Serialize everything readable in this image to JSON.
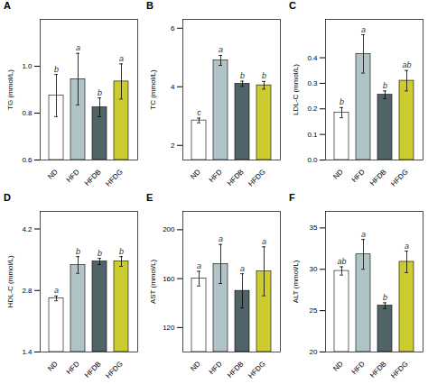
{
  "chart_data": [
    {
      "type": "bar",
      "title": "A",
      "ylabel": "TG (mmol/L)",
      "categories": [
        "ND",
        "HFD",
        "HFDB",
        "HFDG"
      ],
      "values": [
        0.875,
        0.945,
        0.825,
        0.935
      ],
      "errors": [
        0.09,
        0.11,
        0.04,
        0.075
      ],
      "annotations": [
        "b",
        "a",
        "b",
        "a"
      ],
      "colors": [
        "white",
        "#b0c4c8",
        "#506468",
        "#cccc30"
      ],
      "ylim": [
        0.6,
        1.2
      ],
      "yticks": [
        0.6,
        0.8,
        {
          "value": 1,
          "label": "1.0"
        }
      ],
      "grid": false
    },
    {
      "type": "bar",
      "title": "B",
      "ylabel": "TC (mmol/L)",
      "categories": [
        "ND",
        "HFD",
        "HFDB",
        "HFDG"
      ],
      "values": [
        2.85,
        4.9,
        4.1,
        4.05
      ],
      "errors": [
        0.08,
        0.17,
        0.09,
        0.13
      ],
      "annotations": [
        "c",
        "a",
        "b",
        "b"
      ],
      "colors": [
        "white",
        "#b0c4c8",
        "#506468",
        "#cccc30"
      ],
      "ylim": [
        1.5,
        6.3
      ],
      "yticks": [
        2,
        4,
        6
      ],
      "grid": false
    },
    {
      "type": "bar",
      "title": "C",
      "ylabel": "LDL-C (mmol/L)",
      "categories": [
        "ND",
        "HFD",
        "HFDB",
        "HFDG"
      ],
      "values": [
        0.185,
        0.415,
        0.255,
        0.31
      ],
      "errors": [
        0.02,
        0.075,
        0.015,
        0.04
      ],
      "annotations": [
        "b",
        "a",
        "b",
        "ab"
      ],
      "colors": [
        "white",
        "#b0c4c8",
        "#506468",
        "#cccc30"
      ],
      "ylim": [
        0.0,
        0.55
      ],
      "yticks": [
        {
          "value": 0,
          "label": "0.0"
        },
        0.1,
        0.2,
        0.3,
        0.4
      ],
      "grid": false
    },
    {
      "type": "bar",
      "title": "D",
      "ylabel": "HDL-C (mmol/L)",
      "categories": [
        "ND",
        "HFD",
        "HFDB",
        "HFDG"
      ],
      "values": [
        2.62,
        3.38,
        3.46,
        3.46
      ],
      "errors": [
        0.055,
        0.19,
        0.07,
        0.11
      ],
      "annotations": [
        "a",
        "b",
        "b",
        "b"
      ],
      "colors": [
        "white",
        "#b0c4c8",
        "#506468",
        "#cccc30"
      ],
      "ylim": [
        1.4,
        4.6
      ],
      "yticks": [
        1.4,
        2.8,
        4.2
      ],
      "grid": false
    },
    {
      "type": "bar",
      "title": "E",
      "ylabel": "AST (mmol/L)",
      "categories": [
        "ND",
        "HFD",
        "HFDB",
        "HFDG"
      ],
      "values": [
        160,
        172,
        150,
        166
      ],
      "errors": [
        6,
        16,
        14,
        20
      ],
      "annotations": [
        "a",
        "a",
        "a",
        "a"
      ],
      "colors": [
        "white",
        "#b0c4c8",
        "#506468",
        "#cccc30"
      ],
      "ylim": [
        100,
        215
      ],
      "yticks": [
        120,
        160,
        200
      ],
      "grid": false
    },
    {
      "type": "bar",
      "title": "F",
      "ylabel": "ALT (mmol/L)",
      "categories": [
        "ND",
        "HFD",
        "HFDB",
        "HFDG"
      ],
      "values": [
        29.8,
        31.8,
        25.6,
        30.9
      ],
      "errors": [
        0.5,
        1.8,
        0.35,
        1.3
      ],
      "annotations": [
        "ab",
        "a",
        "b",
        "a"
      ],
      "colors": [
        "white",
        "#b0c4c8",
        "#506468",
        "#cccc30"
      ],
      "ylim": [
        20,
        37
      ],
      "yticks": [
        20,
        25,
        30,
        35
      ],
      "grid": false
    }
  ]
}
